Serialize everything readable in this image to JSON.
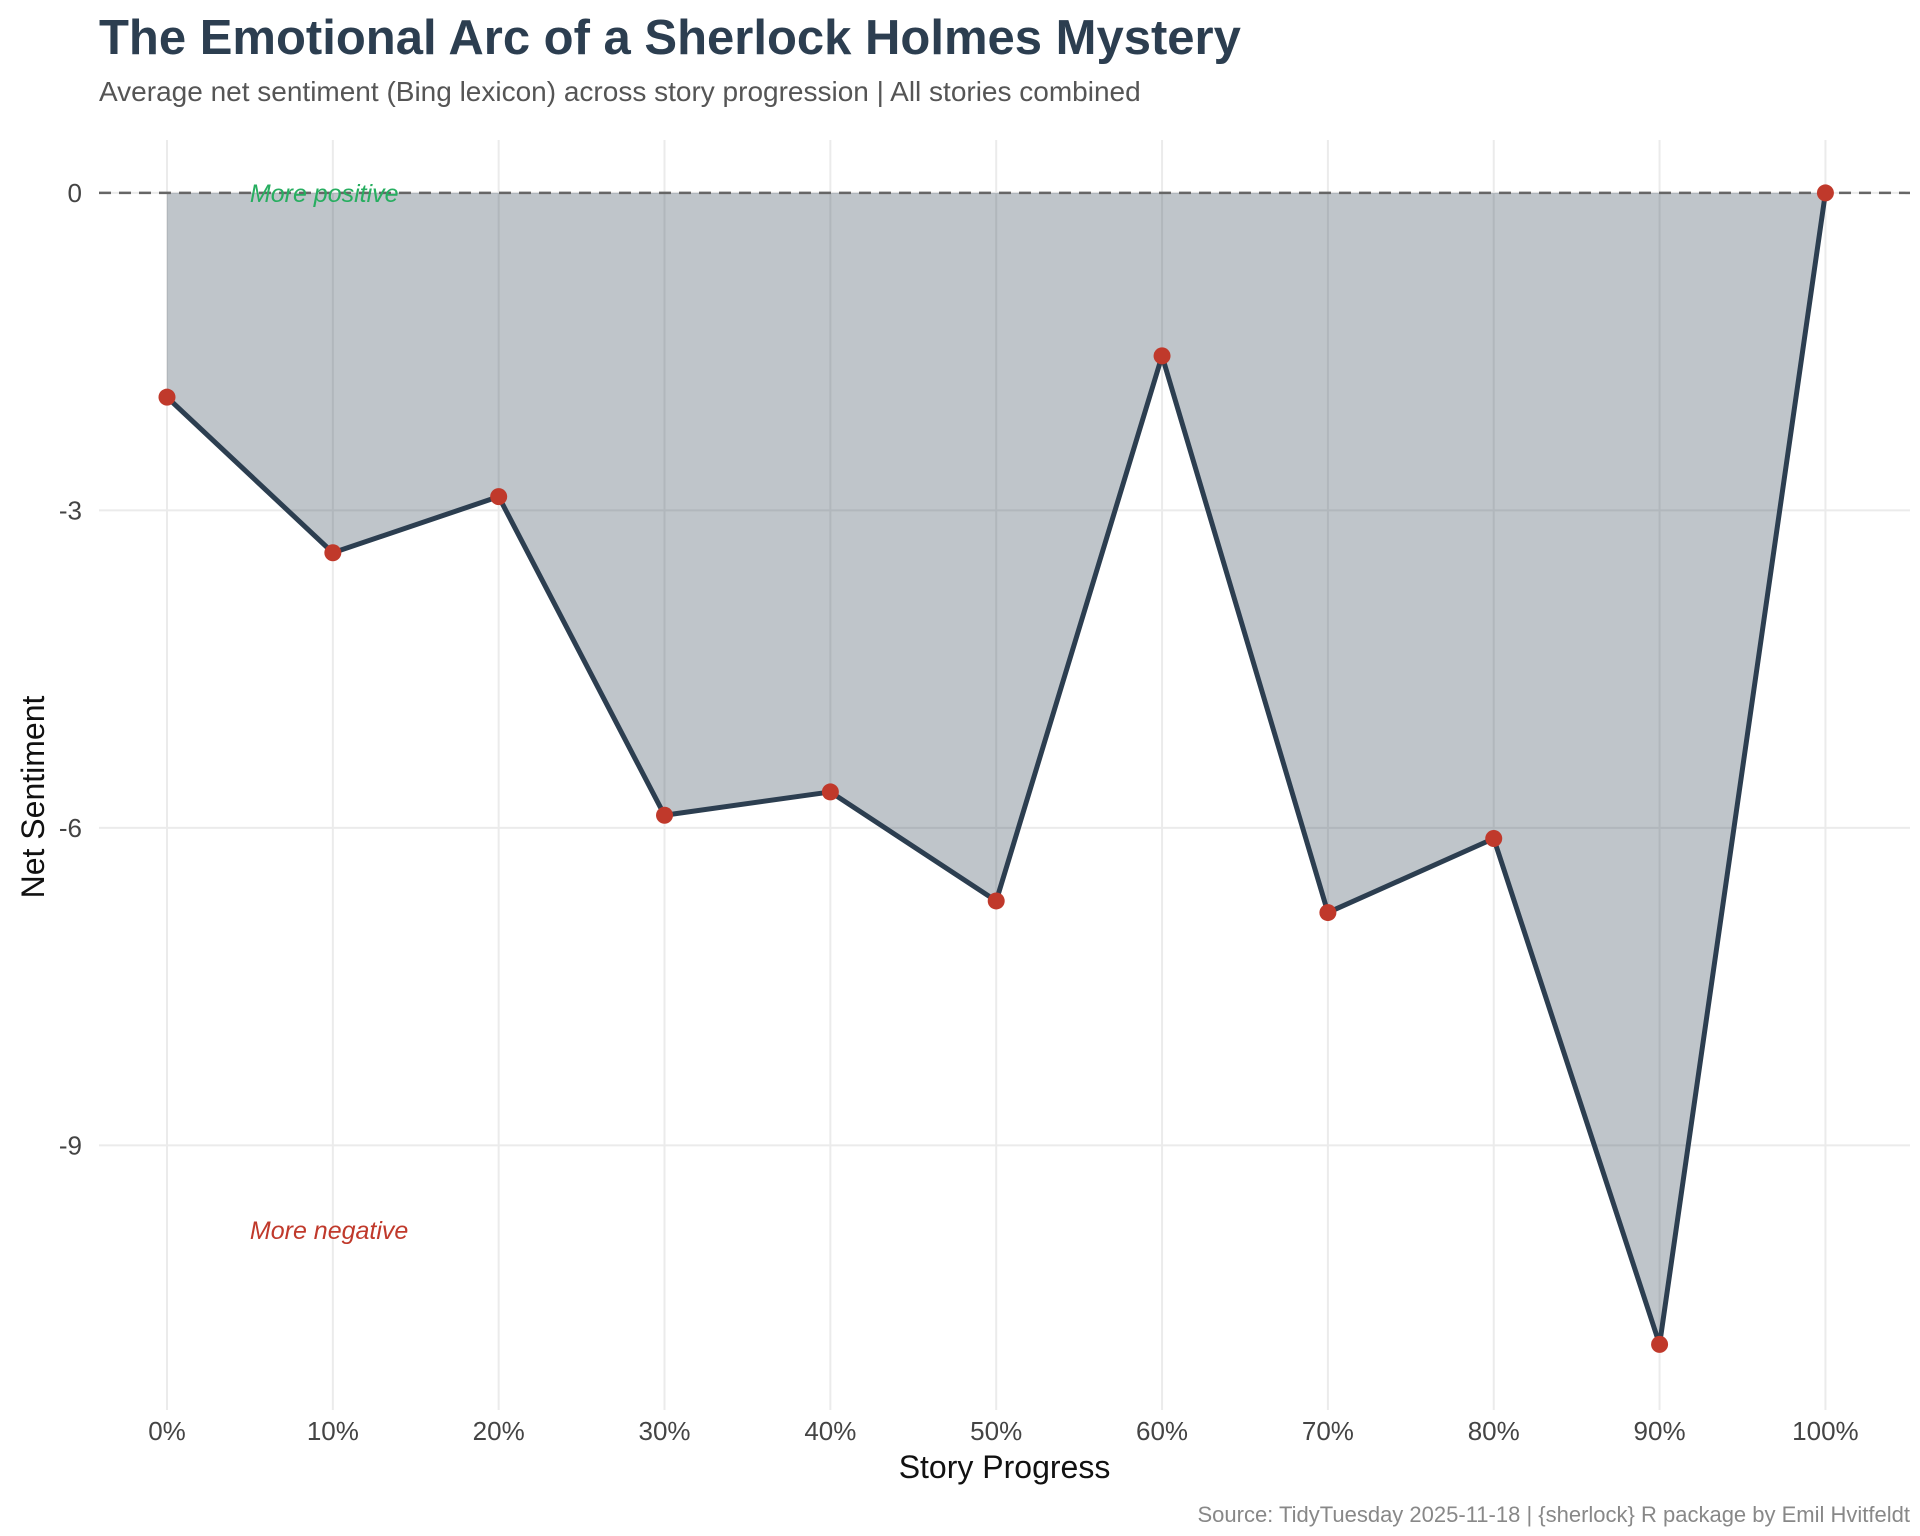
{
  "chart_data": {
    "type": "area",
    "title": "The Emotional Arc of a Sherlock Holmes Mystery",
    "subtitle": "Average net sentiment (Bing lexicon) across story progression | All stories combined",
    "caption": "Source: TidyTuesday 2025-11-18 | {sherlock} R package by Emil Hvitfeldt",
    "xlabel": "Story Progress",
    "ylabel": "Net Sentiment",
    "x": [
      0,
      10,
      20,
      30,
      40,
      50,
      60,
      70,
      80,
      90,
      100
    ],
    "x_tick_labels": [
      "0%",
      "10%",
      "20%",
      "30%",
      "40%",
      "50%",
      "60%",
      "70%",
      "80%",
      "90%",
      "100%"
    ],
    "y_ticks": [
      0,
      -3,
      -6,
      -9
    ],
    "y_tick_labels": [
      "0",
      "-3",
      "-6",
      "-9"
    ],
    "series": [
      {
        "values": [
          -1.93,
          -3.4,
          -2.87,
          -5.88,
          -5.66,
          -6.69,
          -1.54,
          -6.8,
          -6.1,
          -10.88,
          0.0
        ]
      }
    ],
    "xlim": [
      -4.1,
      105.1
    ],
    "ylim": [
      -11.5,
      0.5
    ],
    "reference_line": 0,
    "annotations": [
      {
        "text": "More positive",
        "x": 5,
        "y": 0,
        "color": "#27ae60"
      },
      {
        "text": "More negative",
        "x": 5,
        "y": -9.8,
        "color": "#c0392b"
      }
    ],
    "colors": {
      "line": "#2c3e50",
      "area": "#2c3e50",
      "points": "#c0392b",
      "title": "#2c3e50"
    },
    "grid": true
  }
}
